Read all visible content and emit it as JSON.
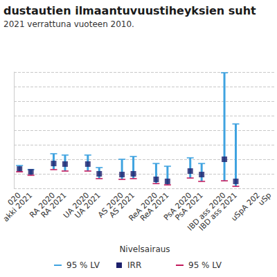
{
  "chart_data": {
    "type": "scatter",
    "title": "dustautien ilmaantuvuustiheyksien suht",
    "subtitle": "2021 verrattuna vuoteen 2010.",
    "x_label": "Nivelsairaus",
    "categories": [
      "020",
      "akki 2021",
      null,
      "RA 2020",
      "RA 2021",
      null,
      "UA 2020",
      "UA 2021",
      null,
      "AS 2020",
      "AS 2021",
      null,
      "ReA 2020",
      "ReA 2021",
      null,
      "PsA 2020",
      "PsA 2021",
      null,
      "IBD ass 2020",
      "IBD ass 2021",
      null,
      "uSpA 202",
      "uSp"
    ],
    "series": [
      {
        "name": "95 % LV",
        "color": "#3fa3e0",
        "marker": "dash",
        "values": [
          1.57,
          1.29,
          null,
          2.38,
          2.29,
          null,
          2.29,
          1.43,
          null,
          2.0,
          2.19,
          null,
          1.71,
          1.52,
          null,
          2.1,
          1.71,
          null,
          7.95,
          4.43,
          null,
          null,
          null
        ]
      },
      {
        "name": "IRR",
        "color": "#1c1f6b",
        "marker": "square",
        "values": [
          1.33,
          1.14,
          null,
          1.71,
          1.67,
          null,
          1.67,
          1.0,
          null,
          0.95,
          1.0,
          null,
          0.62,
          0.48,
          null,
          1.19,
          0.95,
          null,
          2.0,
          0.48,
          null,
          null,
          null
        ]
      },
      {
        "name": "95 % LV",
        "color": "#c2185b",
        "marker": "dash",
        "values": [
          1.14,
          0.9,
          null,
          1.29,
          1.19,
          null,
          1.19,
          0.67,
          null,
          0.62,
          0.67,
          null,
          0.33,
          0.24,
          null,
          0.71,
          0.48,
          null,
          0.52,
          0.14,
          null,
          null,
          null
        ]
      }
    ],
    "ylim": [
      0,
      8
    ],
    "yticks": [
      0,
      1,
      2,
      3,
      4,
      5,
      6,
      7,
      8
    ],
    "grid": true,
    "tick_labels": "x"
  }
}
